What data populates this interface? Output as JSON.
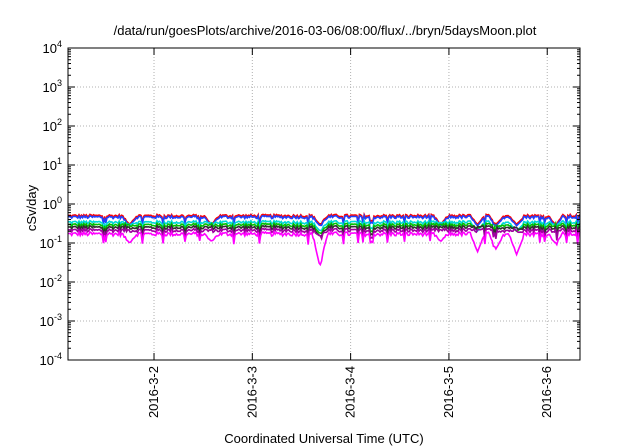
{
  "chart_data": {
    "type": "line",
    "title": "/data/run/goesPlots/archive/2016-03-06/08:00/flux/../bryn/5daysMoon.plot",
    "xlabel": "Coordinated Universal Time (UTC)",
    "ylabel": "cSv/day",
    "yscale": "log",
    "ylim": [
      0.0001,
      10000
    ],
    "xlim": [
      "2016-03-01T03:00",
      "2016-03-06T08:00"
    ],
    "grid": true,
    "x_ticks": [
      "2016-3-2",
      "2016-3-3",
      "2016-3-4",
      "2016-3-5",
      "2016-3-6"
    ],
    "y_ticks": [
      {
        "base": "10",
        "exp": "-4"
      },
      {
        "base": "10",
        "exp": "-3"
      },
      {
        "base": "10",
        "exp": "-2"
      },
      {
        "base": "10",
        "exp": "-1"
      },
      {
        "base": "10",
        "exp": "0"
      },
      {
        "base": "10",
        "exp": "1"
      },
      {
        "base": "10",
        "exp": "2"
      },
      {
        "base": "10",
        "exp": "3"
      },
      {
        "base": "10",
        "exp": "4"
      }
    ],
    "series": [
      {
        "color": "#ff0000",
        "level": 0.5,
        "values_description_free": true
      },
      {
        "color": "#2040ff",
        "level": 0.46
      },
      {
        "color": "#00d8d8",
        "level": 0.34
      },
      {
        "color": "#00c000",
        "level": 0.29
      },
      {
        "color": "#303030",
        "level": 0.25
      },
      {
        "color": "#a000a0",
        "level": 0.21
      },
      {
        "color": "#ff00ff",
        "level": 0.17
      }
    ],
    "dips": [
      {
        "x": "2016-03-01T18:00",
        "min": 0.1
      },
      {
        "x": "2016-03-02T14:00",
        "min": 0.11
      },
      {
        "x": "2016-03-03T16:30",
        "min": 0.025
      },
      {
        "x": "2016-03-04T22:00",
        "min": 0.11
      },
      {
        "x": "2016-03-05T07:00",
        "min": 0.06
      },
      {
        "x": "2016-03-05T11:30",
        "min": 0.07
      },
      {
        "x": "2016-03-05T16:30",
        "min": 0.05
      },
      {
        "x": "2016-03-06T02:00",
        "min": 0.1
      }
    ]
  }
}
